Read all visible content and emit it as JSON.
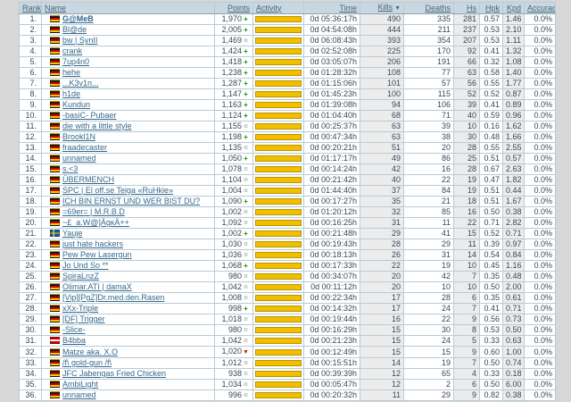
{
  "page": {
    "background": "#d7d7d7"
  },
  "table": {
    "columns": [
      {
        "id": "rank",
        "label": "Rank"
      },
      {
        "id": "name",
        "label": "Name"
      },
      {
        "id": "points",
        "label": "Points"
      },
      {
        "id": "activity",
        "label": "Activity"
      },
      {
        "id": "time",
        "label": "Time"
      },
      {
        "id": "kills",
        "label": "Kills"
      },
      {
        "id": "deaths",
        "label": "Deaths"
      },
      {
        "id": "hs",
        "label": "Hs"
      },
      {
        "id": "hpk",
        "label": "Hpk"
      },
      {
        "id": "kpd",
        "label": "Kpd"
      },
      {
        "id": "accuracy",
        "label": "Accuracy"
      }
    ],
    "sort": {
      "column": "kills",
      "direction": "desc",
      "arrow": "▼"
    },
    "trend_glyphs": {
      "up": "+",
      "same": "=",
      "down": "▼"
    },
    "colors": {
      "header_bg": "#c9d8e0",
      "activity_bar": "#f0bf00",
      "link": "#35688e",
      "trend_up": "#009900",
      "trend_same": "#93a7b2",
      "trend_down": "#cc2200"
    },
    "rows": [
      {
        "rank": "1.",
        "flag": "de",
        "name": "G@MeB",
        "bold": true,
        "points": "1,970",
        "trend": "up",
        "activity": 100,
        "time": "0d 05:36:17h",
        "kills": "490",
        "deaths": "335",
        "hs": "281",
        "hpk": "0.57",
        "kpd": "1.46",
        "accuracy": "0.0%"
      },
      {
        "rank": "2.",
        "flag": "de",
        "name": "Bl@de",
        "points": "2,005",
        "trend": "up",
        "activity": 100,
        "time": "0d 04:54:08h",
        "kills": "444",
        "deaths": "211",
        "hs": "237",
        "hpk": "0.53",
        "kpd": "2.10",
        "accuracy": "0.0%"
      },
      {
        "rank": "3.",
        "flag": "de",
        "name": "bw | SynII",
        "points": "1,469",
        "trend": "same",
        "activity": 100,
        "time": "0d 06:08:43h",
        "kills": "393",
        "deaths": "354",
        "hs": "207",
        "hpk": "0.53",
        "kpd": "1.11",
        "accuracy": "0.0%"
      },
      {
        "rank": "4.",
        "flag": "de",
        "name": "crank",
        "points": "1,424",
        "trend": "up",
        "activity": 100,
        "time": "0d 02:52:08h",
        "kills": "225",
        "deaths": "170",
        "hs": "92",
        "hpk": "0.41",
        "kpd": "1.32",
        "accuracy": "0.0%"
      },
      {
        "rank": "5.",
        "flag": "de",
        "name": "7up4n0",
        "points": "1,418",
        "trend": "up",
        "activity": 100,
        "time": "0d 03:05:07h",
        "kills": "206",
        "deaths": "191",
        "hs": "66",
        "hpk": "0.32",
        "kpd": "1.08",
        "accuracy": "0.0%"
      },
      {
        "rank": "6.",
        "flag": "de",
        "name": "hehe",
        "points": "1,238",
        "trend": "up",
        "activity": 100,
        "time": "0d 01:28:32h",
        "kills": "108",
        "deaths": "77",
        "hs": "63",
        "hpk": "0.58",
        "kpd": "1.40",
        "accuracy": "0.0%"
      },
      {
        "rank": "7.",
        "flag": "de",
        "name": "...K3v1n...",
        "points": "1,287",
        "trend": "up",
        "activity": 100,
        "time": "0d 01:15:06h",
        "kills": "101",
        "deaths": "57",
        "hs": "56",
        "hpk": "0.55",
        "kpd": "1.77",
        "accuracy": "0.0%"
      },
      {
        "rank": "8.",
        "flag": "de",
        "name": "h1de",
        "points": "1,147",
        "trend": "up",
        "activity": 100,
        "time": "0d 01:45:23h",
        "kills": "100",
        "deaths": "115",
        "hs": "52",
        "hpk": "0.52",
        "kpd": "0.87",
        "accuracy": "0.0%"
      },
      {
        "rank": "9.",
        "flag": "de",
        "name": "Kundun",
        "points": "1,163",
        "trend": "up",
        "activity": 100,
        "time": "0d 01:39:08h",
        "kills": "94",
        "deaths": "106",
        "hs": "39",
        "hpk": "0.41",
        "kpd": "0.89",
        "accuracy": "0.0%"
      },
      {
        "rank": "10.",
        "flag": "de",
        "name": "-basiC- Pubaer",
        "points": "1,124",
        "trend": "up",
        "activity": 100,
        "time": "0d 01:04:40h",
        "kills": "68",
        "deaths": "71",
        "hs": "40",
        "hpk": "0.59",
        "kpd": "0.96",
        "accuracy": "0.0%"
      },
      {
        "rank": "11.",
        "flag": "de",
        "name": "die with a little style",
        "points": "1,155",
        "trend": "same",
        "activity": 100,
        "time": "0d 00:25:37h",
        "kills": "63",
        "deaths": "39",
        "hs": "10",
        "hpk": "0.16",
        "kpd": "1.62",
        "accuracy": "0.0%"
      },
      {
        "rank": "12.",
        "flag": "de",
        "name": "Brookl1N",
        "points": "1,198",
        "trend": "up",
        "activity": 100,
        "time": "0d 00:47:34h",
        "kills": "63",
        "deaths": "38",
        "hs": "30",
        "hpk": "0.48",
        "kpd": "1.66",
        "accuracy": "0.0%"
      },
      {
        "rank": "13.",
        "flag": "de",
        "name": "fraadecaster",
        "points": "1,135",
        "trend": "same",
        "activity": 100,
        "time": "0d 00:20:21h",
        "kills": "51",
        "deaths": "20",
        "hs": "28",
        "hpk": "0.55",
        "kpd": "2.55",
        "accuracy": "0.0%"
      },
      {
        "rank": "14.",
        "flag": "de",
        "name": "unnamed",
        "points": "1,050",
        "trend": "up",
        "activity": 100,
        "time": "0d 01:17:17h",
        "kills": "49",
        "deaths": "86",
        "hs": "25",
        "hpk": "0.51",
        "kpd": "0.57",
        "accuracy": "0.0%"
      },
      {
        "rank": "15.",
        "flag": "de",
        "name": "s.<3",
        "points": "1,078",
        "trend": "same",
        "activity": 100,
        "time": "0d 00:14:24h",
        "kills": "42",
        "deaths": "16",
        "hs": "28",
        "hpk": "0.67",
        "kpd": "2.63",
        "accuracy": "0.0%"
      },
      {
        "rank": "16.",
        "flag": "de",
        "name": "ÜBERMENCH",
        "points": "1,104",
        "trend": "same",
        "activity": 100,
        "time": "0d 00:21:42h",
        "kills": "40",
        "deaths": "22",
        "hs": "19",
        "hpk": "0.47",
        "kpd": "1.82",
        "accuracy": "0.0%"
      },
      {
        "rank": "17.",
        "flag": "de",
        "name": "SPC | El off.se Teiga «RuHkie»",
        "points": "1,004",
        "trend": "same",
        "activity": 100,
        "time": "0d 01:44:40h",
        "kills": "37",
        "deaths": "84",
        "hs": "19",
        "hpk": "0.51",
        "kpd": "0.44",
        "accuracy": "0.0%"
      },
      {
        "rank": "18.",
        "flag": "de",
        "name": "ICH BIN ERNST UND WER BIST DU?",
        "points": "1,090",
        "trend": "up",
        "activity": 100,
        "time": "0d 00:17:27h",
        "kills": "35",
        "deaths": "21",
        "hs": "18",
        "hpk": "0.51",
        "kpd": "1.67",
        "accuracy": "0.0%"
      },
      {
        "rank": "19.",
        "flag": "de",
        "name": "=69er= | M.R.B.D",
        "points": "1,002",
        "trend": "same",
        "activity": 100,
        "time": "0d 01:20:12h",
        "kills": "32",
        "deaths": "85",
        "hs": "16",
        "hpk": "0.50",
        "kpd": "0.38",
        "accuracy": "0.0%"
      },
      {
        "rank": "20.",
        "flag": "de",
        "name": "~£_a.W@]ÄgκÄ++",
        "points": "1,092",
        "trend": "same",
        "activity": 100,
        "time": "0d 00:16:25h",
        "kills": "31",
        "deaths": "11",
        "hs": "22",
        "hpk": "0.71",
        "kpd": "2.82",
        "accuracy": "0.0%"
      },
      {
        "rank": "21.",
        "flag": "se",
        "name": "Yauje",
        "points": "1,002",
        "trend": "up",
        "activity": 100,
        "time": "0d 00:21:48h",
        "kills": "29",
        "deaths": "41",
        "hs": "15",
        "hpk": "0.52",
        "kpd": "0.71",
        "accuracy": "0.0%"
      },
      {
        "rank": "22.",
        "flag": "de",
        "name": "just hate hackers",
        "points": "1,030",
        "trend": "same",
        "activity": 100,
        "time": "0d 00:19:43h",
        "kills": "28",
        "deaths": "29",
        "hs": "11",
        "hpk": "0.39",
        "kpd": "0.97",
        "accuracy": "0.0%"
      },
      {
        "rank": "23.",
        "flag": "de",
        "name": "Pew Pew Lasergun",
        "points": "1,036",
        "trend": "same",
        "activity": 100,
        "time": "0d 00:18:13h",
        "kills": "26",
        "deaths": "31",
        "hs": "14",
        "hpk": "0.54",
        "kpd": "0.84",
        "accuracy": "0.0%"
      },
      {
        "rank": "24.",
        "flag": "de",
        "name": "Jo Und So **",
        "points": "1,068",
        "trend": "up",
        "activity": 100,
        "time": "0d 00:17:33h",
        "kills": "22",
        "deaths": "19",
        "hs": "10",
        "hpk": "0.45",
        "kpd": "1.16",
        "accuracy": "0.0%"
      },
      {
        "rank": "25.",
        "flag": "de",
        "name": "SpiraLnzZ",
        "points": "980",
        "trend": "same",
        "activity": 100,
        "time": "0d 00:34:07h",
        "kills": "20",
        "deaths": "42",
        "hs": "7",
        "hpk": "0.35",
        "kpd": "0.48",
        "accuracy": "0.0%"
      },
      {
        "rank": "26.",
        "flag": "de",
        "name": "Olimar.ATI | damaX",
        "points": "1,042",
        "trend": "same",
        "activity": 100,
        "time": "0d 00:11:12h",
        "kills": "20",
        "deaths": "10",
        "hs": "10",
        "hpk": "0.50",
        "kpd": "2.00",
        "accuracy": "0.0%"
      },
      {
        "rank": "27.",
        "flag": "de",
        "name": "[Vip][PgZ]Dr.med.den.Rasen",
        "points": "1,008",
        "trend": "same",
        "activity": 100,
        "time": "0d 00:22:34h",
        "kills": "17",
        "deaths": "28",
        "hs": "6",
        "hpk": "0.35",
        "kpd": "0.61",
        "accuracy": "0.0%"
      },
      {
        "rank": "28.",
        "flag": "de",
        "name": "xXx-Triple",
        "points": "998",
        "trend": "up",
        "activity": 100,
        "time": "0d 00:14:32h",
        "kills": "17",
        "deaths": "24",
        "hs": "7",
        "hpk": "0.41",
        "kpd": "0.71",
        "accuracy": "0.0%"
      },
      {
        "rank": "29.",
        "flag": "de",
        "name": "[DF] Trigger",
        "points": "1,018",
        "trend": "same",
        "activity": 100,
        "time": "0d 00:19:44h",
        "kills": "16",
        "deaths": "22",
        "hs": "9",
        "hpk": "0.56",
        "kpd": "0.73",
        "accuracy": "0.0%"
      },
      {
        "rank": "30.",
        "flag": "de",
        "name": "-Slice-",
        "points": "980",
        "trend": "same",
        "activity": 100,
        "time": "0d 00:16:29h",
        "kills": "15",
        "deaths": "30",
        "hs": "8",
        "hpk": "0.53",
        "kpd": "0.50",
        "accuracy": "0.0%"
      },
      {
        "rank": "31.",
        "flag": "at",
        "name": "B4bba",
        "points": "1,042",
        "trend": "same",
        "activity": 100,
        "time": "0d 00:21:23h",
        "kills": "15",
        "deaths": "24",
        "hs": "5",
        "hpk": "0.33",
        "kpd": "0.63",
        "accuracy": "0.0%"
      },
      {
        "rank": "32.",
        "flag": "de",
        "name": "Matze aka. X.O",
        "points": "1,020",
        "trend": "down",
        "activity": 100,
        "time": "0d 00:12:49h",
        "kills": "15",
        "deaths": "15",
        "hs": "9",
        "hpk": "0.60",
        "kpd": "1.00",
        "accuracy": "0.0%"
      },
      {
        "rank": "33.",
        "flag": "de",
        "name": "/f\\ gold-gun /f\\",
        "points": "1,012",
        "trend": "same",
        "activity": 100,
        "time": "0d 00:15:51h",
        "kills": "14",
        "deaths": "19",
        "hs": "7",
        "hpk": "0.50",
        "kpd": "0.74",
        "accuracy": "0.0%"
      },
      {
        "rank": "34.",
        "flag": "de",
        "name": "JFC Jabengas Fried Chicken",
        "points": "938",
        "trend": "same",
        "activity": 100,
        "time": "0d 00:39:39h",
        "kills": "12",
        "deaths": "65",
        "hs": "4",
        "hpk": "0.33",
        "kpd": "0.18",
        "accuracy": "0.0%"
      },
      {
        "rank": "35.",
        "flag": "de",
        "name": "AmbiLight",
        "points": "1,034",
        "trend": "same",
        "activity": 100,
        "time": "0d 00:05:47h",
        "kills": "12",
        "deaths": "2",
        "hs": "6",
        "hpk": "0.50",
        "kpd": "6.00",
        "accuracy": "0.0%"
      },
      {
        "rank": "36.",
        "flag": "de",
        "name": "unnamed",
        "points": "996",
        "trend": "same",
        "activity": 100,
        "time": "0d 00:20:32h",
        "kills": "11",
        "deaths": "29",
        "hs": "9",
        "hpk": "0.82",
        "kpd": "0.38",
        "accuracy": "0.0%"
      }
    ]
  }
}
